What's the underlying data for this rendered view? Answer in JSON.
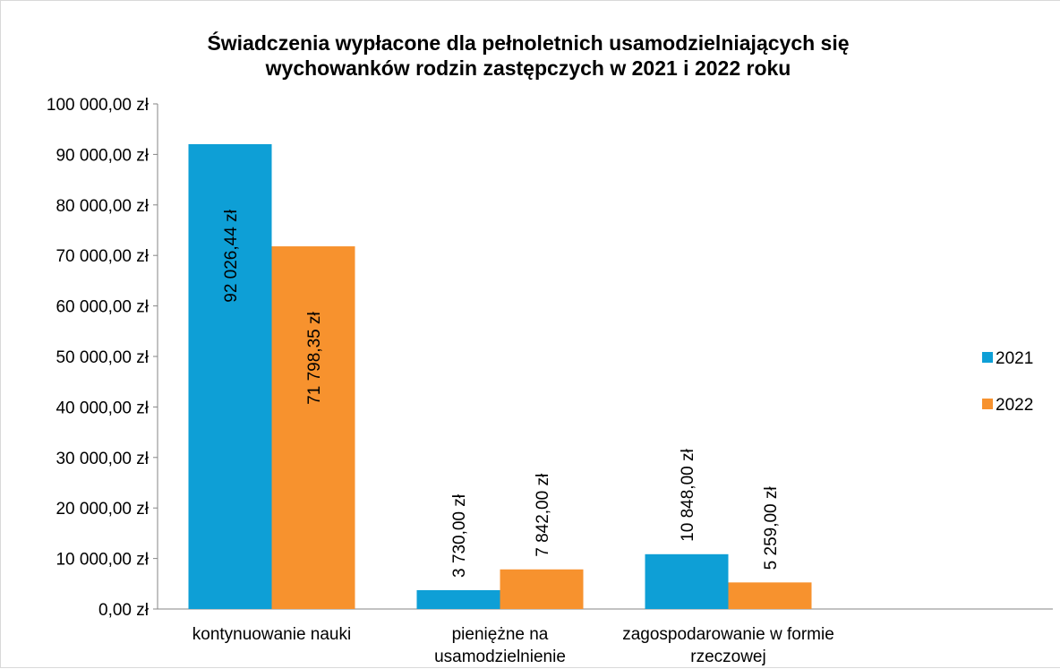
{
  "chart_data": {
    "type": "bar",
    "title": "Świadczenia wypłacone dla pełnoletnich usamodzielniających się wychowanków rodzin zastępczych w 2021 i 2022 roku",
    "categories": [
      "kontynuowanie nauki",
      "pieniężne na usamodzielnienie",
      "zagospodarowanie w formie rzeczowej",
      null
    ],
    "series": [
      {
        "name": "2021",
        "color": "#0e9fd6",
        "values": [
          92026.44,
          3730,
          10848,
          null
        ],
        "value_labels": [
          "92 026,44 zł",
          "3 730,00 zł",
          "10 848,00 zł",
          null
        ]
      },
      {
        "name": "2022",
        "color": "#f7922e",
        "values": [
          71798.35,
          7842,
          5259,
          null
        ],
        "value_labels": [
          "71 798,35 zł",
          "7 842,00 zł",
          "5 259,00 zł",
          null
        ]
      }
    ],
    "ylim": [
      0,
      100000
    ],
    "yticks": [
      {
        "value": 0,
        "label": "0,00 zł"
      },
      {
        "value": 10000,
        "label": "10 000,00 zł"
      },
      {
        "value": 20000,
        "label": "20 000,00 zł"
      },
      {
        "value": 30000,
        "label": "30 000,00 zł"
      },
      {
        "value": 40000,
        "label": "40 000,00 zł"
      },
      {
        "value": 50000,
        "label": "50 000,00 zł"
      },
      {
        "value": 60000,
        "label": "60 000,00 zł"
      },
      {
        "value": 70000,
        "label": "70 000,00 zł"
      },
      {
        "value": 80000,
        "label": "80 000,00 zł"
      },
      {
        "value": 90000,
        "label": "90 000,00 zł"
      },
      {
        "value": 100000,
        "label": "100 000,00 zł"
      }
    ],
    "grid": false,
    "legend": "right"
  }
}
